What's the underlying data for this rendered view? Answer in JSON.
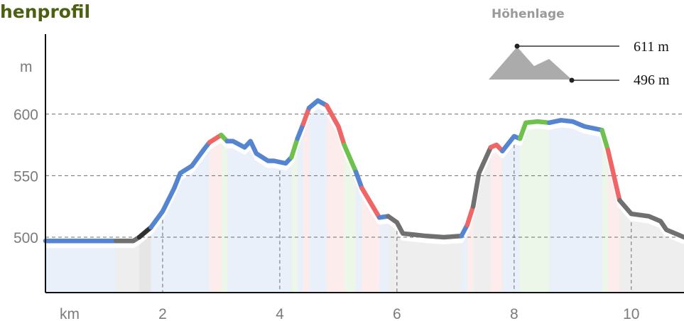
{
  "header": {
    "title": "henprofil"
  },
  "legend": {
    "title": "Höhenlage",
    "max_label": "611 m",
    "min_label": "496 m"
  },
  "chart_data": {
    "type": "line",
    "title": "henprofil",
    "xlabel": "km",
    "ylabel": "m",
    "x_ticks": [
      "2",
      "4",
      "6",
      "8",
      "10"
    ],
    "y_ticks": [
      "500",
      "550",
      "600"
    ],
    "xlim": [
      0,
      10.9
    ],
    "ylim": [
      455,
      665
    ],
    "grid": "dashed",
    "elevation_max_m": 611,
    "elevation_min_m": 496,
    "surface_colors": {
      "asphalt": "#5585d0",
      "natural": "#f06565",
      "gravel": "#6ec14c",
      "unknown": "#707070",
      "path": "#303030"
    },
    "series": [
      {
        "x": [
          0,
          0.5,
          1.0,
          1.2,
          1.5,
          1.6,
          1.8,
          2.0,
          2.2,
          2.3,
          2.5,
          2.7,
          2.8,
          3.0,
          3.1,
          3.2,
          3.4,
          3.5,
          3.6,
          3.8,
          3.9,
          4.1,
          4.2,
          4.3,
          4.4,
          4.5,
          4.65,
          4.8,
          5.0,
          5.1,
          5.3,
          5.4,
          5.6,
          5.7,
          5.85,
          6.0,
          6.1,
          6.3,
          6.5,
          6.8,
          7.1,
          7.2,
          7.3,
          7.4,
          7.6,
          7.7,
          7.8,
          8.0,
          8.1,
          8.2,
          8.4,
          8.6,
          8.8,
          9.0,
          9.2,
          9.5,
          9.6,
          9.8,
          10.0,
          10.3,
          10.5,
          10.6,
          10.8,
          10.9
        ],
        "y": [
          497,
          497,
          497,
          497,
          497,
          500,
          508,
          521,
          540,
          552,
          558,
          571,
          577,
          583,
          578,
          578,
          573,
          578,
          568,
          562,
          562,
          560,
          565,
          580,
          592,
          605,
          611,
          607,
          590,
          575,
          553,
          540,
          524,
          516,
          517,
          512,
          503,
          502,
          501,
          500,
          501,
          510,
          525,
          552,
          573,
          575,
          570,
          582,
          580,
          593,
          594,
          593,
          595,
          594,
          590,
          587,
          571,
          530,
          519,
          517,
          513,
          506,
          502,
          500
        ],
        "segments": [
          {
            "x_from": 0.0,
            "x_to": 1.2,
            "surface": "asphalt"
          },
          {
            "x_from": 1.2,
            "x_to": 1.6,
            "surface": "unknown"
          },
          {
            "x_from": 1.6,
            "x_to": 1.8,
            "surface": "path"
          },
          {
            "x_from": 1.8,
            "x_to": 2.8,
            "surface": "asphalt"
          },
          {
            "x_from": 2.8,
            "x_to": 3.0,
            "surface": "natural"
          },
          {
            "x_from": 3.0,
            "x_to": 3.1,
            "surface": "gravel"
          },
          {
            "x_from": 3.1,
            "x_to": 4.2,
            "surface": "asphalt"
          },
          {
            "x_from": 4.2,
            "x_to": 4.3,
            "surface": "gravel"
          },
          {
            "x_from": 4.3,
            "x_to": 4.4,
            "surface": "asphalt"
          },
          {
            "x_from": 4.4,
            "x_to": 4.5,
            "surface": "natural"
          },
          {
            "x_from": 4.5,
            "x_to": 4.8,
            "surface": "asphalt"
          },
          {
            "x_from": 4.8,
            "x_to": 5.1,
            "surface": "natural"
          },
          {
            "x_from": 5.1,
            "x_to": 5.3,
            "surface": "gravel"
          },
          {
            "x_from": 5.3,
            "x_to": 5.4,
            "surface": "asphalt"
          },
          {
            "x_from": 5.4,
            "x_to": 5.7,
            "surface": "natural"
          },
          {
            "x_from": 5.7,
            "x_to": 5.85,
            "surface": "asphalt"
          },
          {
            "x_from": 5.85,
            "x_to": 7.1,
            "surface": "unknown"
          },
          {
            "x_from": 7.1,
            "x_to": 7.2,
            "surface": "asphalt"
          },
          {
            "x_from": 7.2,
            "x_to": 7.3,
            "surface": "natural"
          },
          {
            "x_from": 7.3,
            "x_to": 7.6,
            "surface": "unknown"
          },
          {
            "x_from": 7.6,
            "x_to": 7.8,
            "surface": "natural"
          },
          {
            "x_from": 7.8,
            "x_to": 8.1,
            "surface": "asphalt"
          },
          {
            "x_from": 8.1,
            "x_to": 8.6,
            "surface": "gravel"
          },
          {
            "x_from": 8.6,
            "x_to": 9.5,
            "surface": "asphalt"
          },
          {
            "x_from": 9.5,
            "x_to": 9.6,
            "surface": "gravel"
          },
          {
            "x_from": 9.6,
            "x_to": 9.8,
            "surface": "natural"
          },
          {
            "x_from": 9.8,
            "x_to": 10.9,
            "surface": "unknown"
          }
        ]
      }
    ]
  }
}
